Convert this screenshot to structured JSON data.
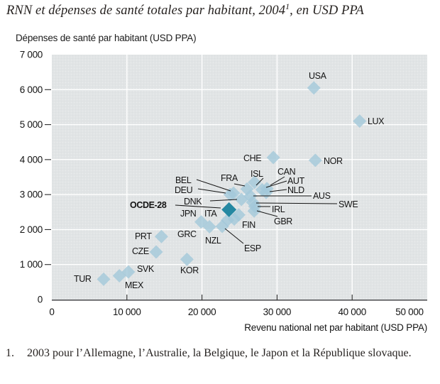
{
  "title": {
    "before_sup": "RNN et dépenses de santé totales par habitant, 2004",
    "sup": "1",
    "after_sup": ", en USD PPA"
  },
  "footnote": {
    "marker": "1.",
    "text": "2003 pour l’Allemagne, l’Australie, la Belgique, le Japon et la République slovaque."
  },
  "colors": {
    "marker": "#a3c8da",
    "marker_emphasis": "#2588a2",
    "plot_background": "#e1e4e5",
    "gridline": "#ffffff",
    "axis_line": "#57585a",
    "tick": "#2b2b2b",
    "label_text": "#141414"
  },
  "chart_data": {
    "type": "scatter",
    "title": "RNN et dépenses de santé totales par habitant, 2004, en USD PPA",
    "xlabel": "Revenu national net par habitant (USD PPA)",
    "ylabel": "Dépenses de santé par habitant (USD PPA)",
    "xlim": [
      0,
      50000
    ],
    "ylim": [
      0,
      7000
    ],
    "grid": true,
    "x_ticks": [
      {
        "v": 0,
        "label": "0"
      },
      {
        "v": 10000,
        "label": "10 000"
      },
      {
        "v": 20000,
        "label": "20 000"
      },
      {
        "v": 30000,
        "label": "30 000"
      },
      {
        "v": 40000,
        "label": "40 000"
      },
      {
        "v": 50000,
        "label": "50 000"
      }
    ],
    "y_ticks": [
      {
        "v": 0,
        "label": "0"
      },
      {
        "v": 1000,
        "label": "1 000"
      },
      {
        "v": 2000,
        "label": "2 000"
      },
      {
        "v": 3000,
        "label": "3 000"
      },
      {
        "v": 4000,
        "label": "4 000"
      },
      {
        "v": 5000,
        "label": "5 000"
      },
      {
        "v": 6000,
        "label": "6 000"
      },
      {
        "v": 7000,
        "label": "7 000"
      }
    ],
    "points": [
      {
        "code": "USA",
        "x": 34900,
        "y": 6050,
        "label": [
          435,
          111
        ]
      },
      {
        "code": "LUX",
        "x": 41000,
        "y": 5100,
        "label": [
          518,
          175
        ]
      },
      {
        "code": "CHE",
        "x": 29500,
        "y": 4060,
        "label": [
          343,
          227
        ]
      },
      {
        "code": "NOR",
        "x": 35100,
        "y": 3980,
        "label": [
          456,
          231
        ]
      },
      {
        "code": "ISL",
        "x": 27000,
        "y": 3350,
        "label": [
          353,
          249
        ],
        "leader": [
          371,
          251,
          361,
          261
        ]
      },
      {
        "code": "CAN",
        "x": 28650,
        "y": 3170,
        "label": [
          391,
          246
        ],
        "leader": [
          401,
          249,
          381,
          261
        ]
      },
      {
        "code": "AUT",
        "x": 28000,
        "y": 3140,
        "label": [
          405,
          259
        ],
        "leader": [
          404,
          255,
          375,
          264
        ]
      },
      {
        "code": "FRA",
        "x": 26000,
        "y": 3160,
        "label": [
          311,
          255
        ],
        "leader": [
          330,
          259,
          345,
          262
        ]
      },
      {
        "code": "NLD",
        "x": 28550,
        "y": 3060,
        "label": [
          405,
          272
        ],
        "leader": [
          404,
          267,
          380,
          270
        ]
      },
      {
        "code": "BEL",
        "x": 24200,
        "y": 3040,
        "label": [
          247,
          258
        ],
        "leader": [
          277,
          253,
          325,
          269
        ]
      },
      {
        "code": "DEU",
        "x": 23750,
        "y": 3000,
        "label": [
          246,
          272
        ],
        "leader": [
          279,
          266,
          318,
          272
        ]
      },
      {
        "code": "AUS",
        "x": 26450,
        "y": 2960,
        "label": [
          441,
          280
        ],
        "leader": [
          439,
          276,
          357,
          276
        ]
      },
      {
        "code": "DNK",
        "x": 25250,
        "y": 2860,
        "label": [
          259,
          288
        ],
        "leader": [
          296,
          283,
          334,
          281
        ]
      },
      {
        "code": "SWE",
        "x": 26750,
        "y": 2780,
        "label": [
          477,
          292
        ],
        "leader": [
          475,
          287,
          361,
          286
        ]
      },
      {
        "code": "IRL",
        "x": 27050,
        "y": 2660,
        "label": [
          383,
          299
        ],
        "leader": [
          381,
          291,
          363,
          291
        ]
      },
      {
        "code": "GBR",
        "x": 26950,
        "y": 2530,
        "label": [
          386,
          316
        ],
        "leader": [
          391,
          305,
          362,
          297
        ]
      },
      {
        "code": "OCDE-28",
        "x": 23600,
        "y": 2570,
        "label": [
          183,
          293
        ],
        "leader": [
          247,
          289,
          311,
          293
        ],
        "emphasis": true
      },
      {
        "code": "ITA",
        "x": 24900,
        "y": 2420,
        "label": [
          288,
          305
        ]
      },
      {
        "code": "JPN",
        "x": 23400,
        "y": 2270,
        "label": [
          254,
          305
        ]
      },
      {
        "code": "FIN",
        "x": 24300,
        "y": 2300,
        "label": [
          341,
          321
        ]
      },
      {
        "code": "ESP",
        "x": 22700,
        "y": 2090,
        "label": [
          344,
          354
        ],
        "leader": [
          343,
          343,
          317,
          322
        ]
      },
      {
        "code": "NZL",
        "x": 21000,
        "y": 2080,
        "label": [
          289,
          343
        ]
      },
      {
        "code": "GRC",
        "x": 19900,
        "y": 2220,
        "label": [
          250,
          334
        ]
      },
      {
        "code": "PRT",
        "x": 14600,
        "y": 1800,
        "label": [
          190,
          337
        ]
      },
      {
        "code": "CZE",
        "x": 13900,
        "y": 1360,
        "label": [
          186,
          358
        ]
      },
      {
        "code": "KOR",
        "x": 18000,
        "y": 1150,
        "label": [
          254,
          385
        ]
      },
      {
        "code": "SVK",
        "x": 10200,
        "y": 790,
        "label": [
          193,
          383
        ]
      },
      {
        "code": "MEX",
        "x": 9000,
        "y": 680,
        "label": [
          176,
          406
        ]
      },
      {
        "code": "TUR",
        "x": 6900,
        "y": 580,
        "label": [
          104,
          397
        ]
      }
    ]
  }
}
